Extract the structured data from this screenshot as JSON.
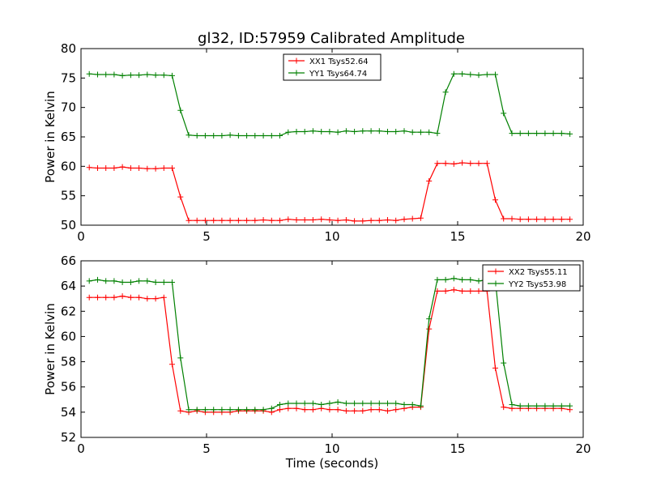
{
  "figure": {
    "title": "gl32, ID:57959 Calibrated Amplitude"
  },
  "chart_data": [
    {
      "type": "line",
      "title": "gl32, ID:57959 Calibrated Amplitude",
      "xlabel": "",
      "ylabel": "Power in Kelvin",
      "xlim": [
        0,
        20
      ],
      "ylim": [
        50,
        80
      ],
      "xticks": [
        0,
        5,
        10,
        15,
        20
      ],
      "yticks": [
        50,
        55,
        60,
        65,
        70,
        75,
        80
      ],
      "grid": false,
      "legend_position": "top-center",
      "x": [
        0.33,
        0.66,
        0.99,
        1.32,
        1.65,
        1.98,
        2.31,
        2.64,
        2.97,
        3.3,
        3.63,
        3.96,
        4.29,
        4.62,
        4.95,
        5.28,
        5.61,
        5.94,
        6.27,
        6.6,
        6.93,
        7.26,
        7.59,
        7.92,
        8.25,
        8.58,
        8.91,
        9.24,
        9.57,
        9.9,
        10.23,
        10.56,
        10.89,
        11.22,
        11.55,
        11.88,
        12.21,
        12.54,
        12.87,
        13.2,
        13.53,
        13.86,
        14.19,
        14.52,
        14.85,
        15.18,
        15.51,
        15.84,
        16.17,
        16.5,
        16.83,
        17.16,
        17.49,
        17.82,
        18.15,
        18.48,
        18.81,
        19.14,
        19.47
      ],
      "series": [
        {
          "name": "XX1 Tsys52.64",
          "color": "#ff0000",
          "values": [
            59.8,
            59.7,
            59.7,
            59.7,
            59.9,
            59.7,
            59.7,
            59.6,
            59.6,
            59.7,
            59.7,
            54.8,
            50.8,
            50.8,
            50.8,
            50.8,
            50.8,
            50.8,
            50.8,
            50.8,
            50.8,
            50.9,
            50.8,
            50.8,
            51.0,
            50.9,
            50.9,
            50.9,
            51.0,
            50.9,
            50.8,
            50.9,
            50.7,
            50.7,
            50.8,
            50.8,
            50.9,
            50.8,
            51.0,
            51.1,
            51.2,
            57.5,
            60.5,
            60.5,
            60.4,
            60.6,
            60.5,
            60.5,
            60.5,
            54.3,
            51.1,
            51.1,
            51.0,
            51.0,
            51.0,
            51.0,
            51.0,
            51.0,
            51.0
          ]
        },
        {
          "name": "YY1 Tsys64.74",
          "color": "#008000",
          "values": [
            75.7,
            75.6,
            75.6,
            75.6,
            75.4,
            75.5,
            75.5,
            75.6,
            75.5,
            75.5,
            75.4,
            69.5,
            65.3,
            65.2,
            65.2,
            65.2,
            65.2,
            65.3,
            65.2,
            65.2,
            65.2,
            65.2,
            65.2,
            65.2,
            65.8,
            65.9,
            65.9,
            66.0,
            65.9,
            65.9,
            65.8,
            66.0,
            65.9,
            66.0,
            66.0,
            66.0,
            65.9,
            65.9,
            66.0,
            65.8,
            65.8,
            65.8,
            65.6,
            72.6,
            75.7,
            75.7,
            75.6,
            75.5,
            75.6,
            75.6,
            69.0,
            65.6,
            65.6,
            65.6,
            65.6,
            65.6,
            65.6,
            65.6,
            65.5
          ]
        }
      ]
    },
    {
      "type": "line",
      "title": "",
      "xlabel": "Time (seconds)",
      "ylabel": "Power in Kelvin",
      "xlim": [
        0,
        20
      ],
      "ylim": [
        52,
        66
      ],
      "xticks": [
        0,
        5,
        10,
        15,
        20
      ],
      "yticks": [
        52,
        54,
        56,
        58,
        60,
        62,
        64,
        66
      ],
      "grid": false,
      "legend_position": "top-right",
      "x": [
        0.33,
        0.66,
        0.99,
        1.32,
        1.65,
        1.98,
        2.31,
        2.64,
        2.97,
        3.3,
        3.63,
        3.96,
        4.29,
        4.62,
        4.95,
        5.28,
        5.61,
        5.94,
        6.27,
        6.6,
        6.93,
        7.26,
        7.59,
        7.92,
        8.25,
        8.58,
        8.91,
        9.24,
        9.57,
        9.9,
        10.23,
        10.56,
        10.89,
        11.22,
        11.55,
        11.88,
        12.21,
        12.54,
        12.87,
        13.2,
        13.53,
        13.86,
        14.19,
        14.52,
        14.85,
        15.18,
        15.51,
        15.84,
        16.17,
        16.5,
        16.83,
        17.16,
        17.49,
        17.82,
        18.15,
        18.48,
        18.81,
        19.14,
        19.47
      ],
      "series": [
        {
          "name": "XX2 Tsys55.11",
          "color": "#ff0000",
          "values": [
            63.1,
            63.1,
            63.1,
            63.1,
            63.2,
            63.1,
            63.1,
            63.0,
            63.0,
            63.1,
            57.8,
            54.1,
            54.0,
            54.1,
            54.0,
            54.0,
            54.0,
            54.0,
            54.1,
            54.1,
            54.1,
            54.1,
            54.0,
            54.2,
            54.3,
            54.3,
            54.2,
            54.2,
            54.3,
            54.2,
            54.2,
            54.1,
            54.1,
            54.1,
            54.2,
            54.2,
            54.1,
            54.2,
            54.3,
            54.4,
            54.4,
            60.6,
            63.6,
            63.6,
            63.7,
            63.6,
            63.6,
            63.6,
            63.6,
            57.5,
            54.4,
            54.3,
            54.3,
            54.3,
            54.3,
            54.3,
            54.3,
            54.3,
            54.2
          ]
        },
        {
          "name": "YY2 Tsys53.98",
          "color": "#008000",
          "values": [
            64.4,
            64.5,
            64.4,
            64.4,
            64.3,
            64.3,
            64.4,
            64.4,
            64.3,
            64.3,
            64.3,
            58.3,
            54.2,
            54.2,
            54.2,
            54.2,
            54.2,
            54.2,
            54.2,
            54.2,
            54.2,
            54.2,
            54.3,
            54.6,
            54.7,
            54.7,
            54.7,
            54.7,
            54.6,
            54.7,
            54.8,
            54.7,
            54.7,
            54.7,
            54.7,
            54.7,
            54.7,
            54.7,
            54.6,
            54.6,
            54.5,
            61.4,
            64.5,
            64.5,
            64.6,
            64.5,
            64.5,
            64.4,
            64.5,
            64.5,
            57.9,
            54.6,
            54.5,
            54.5,
            54.5,
            54.5,
            54.5,
            54.5,
            54.5
          ]
        }
      ]
    }
  ]
}
